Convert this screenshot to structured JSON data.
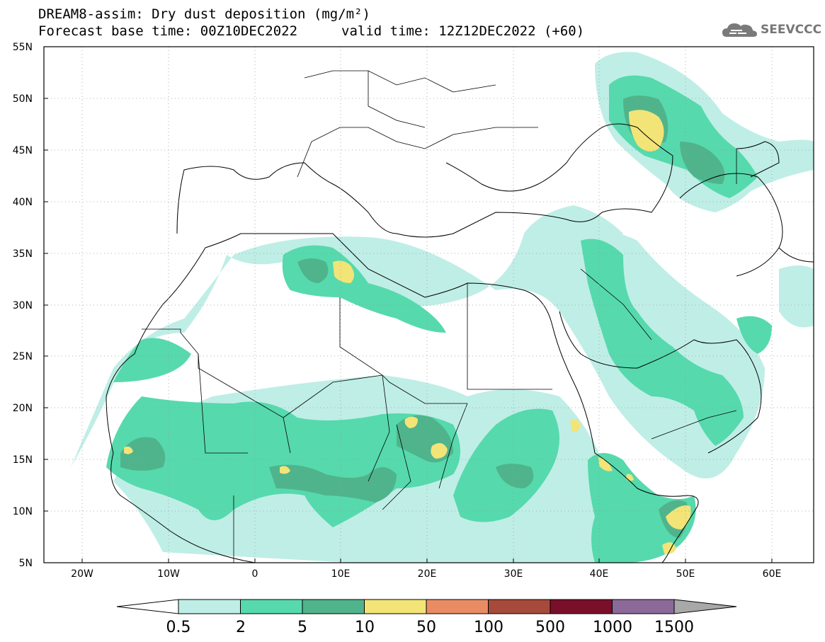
{
  "header": {
    "line1": "DREAM8-assim: Dry dust deposition (mg/m²)",
    "line2_left": "Forecast base time: 00Z10DEC2022",
    "line2_right": "valid time: 12Z12DEC2022 (+60)",
    "logo_text": "SEEVCCC",
    "logo_icon": "cloud-logo-icon"
  },
  "axes": {
    "lat_labels": [
      "55N",
      "50N",
      "45N",
      "40N",
      "35N",
      "30N",
      "25N",
      "20N",
      "15N",
      "10N",
      "5N"
    ],
    "lon_labels": [
      "20W",
      "10W",
      "0",
      "10E",
      "20E",
      "30E",
      "40E",
      "50E",
      "60E"
    ]
  },
  "legend": {
    "labels": [
      "0.5",
      "2",
      "5",
      "10",
      "50",
      "100",
      "500",
      "1000",
      "1500"
    ],
    "colors": [
      "#ffffff",
      "#bfeee6",
      "#56d9ad",
      "#4fb48c",
      "#f3e478",
      "#e98c64",
      "#a64a3c",
      "#7a0f2a",
      "#8b6a9a",
      "#a8a8a8"
    ]
  }
}
